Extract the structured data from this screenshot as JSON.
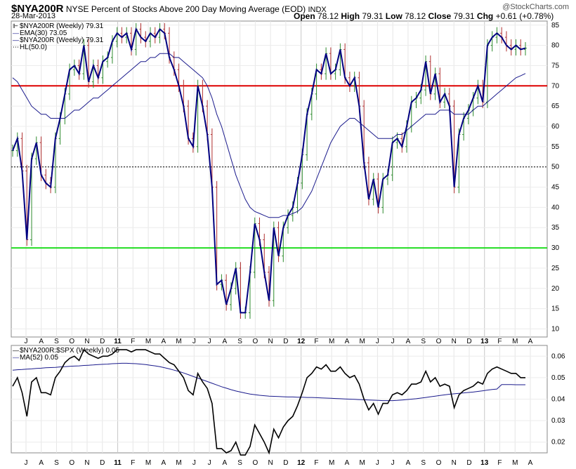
{
  "header": {
    "symbol": "$NYA200R",
    "description": "NYSE Percent of Stocks Above 200 Day Moving Average (EOD)",
    "exchange": "INDX",
    "date": "28-Mar-2013",
    "open_label": "Open",
    "open": "78.12",
    "high_label": "High",
    "high": "79.31",
    "low_label": "Low",
    "low": "78.12",
    "close_label": "Close",
    "close": "79.31",
    "chg_label": "Chg",
    "chg": "+0.61 (+0.78%)",
    "watermark": "@StockCharts.com"
  },
  "legend_main": [
    {
      "text": "$NYA200R (Weekly) 79.31",
      "color": "#000000",
      "symbol": "bars"
    },
    {
      "text": "EMA(30) 73.05",
      "color": "#1a1a8c",
      "symbol": "line"
    },
    {
      "text": "$NYA200R (Weekly) 79.31",
      "color": "#000080",
      "symbol": "line"
    },
    {
      "text": "HL(50.0)",
      "color": "#000000",
      "symbol": "dots"
    }
  ],
  "legend_lower": [
    {
      "text": "$NYA200R:$SPX (Weekly) 0.05",
      "color": "#000000",
      "symbol": "line"
    },
    {
      "text": "MA(52) 0.05",
      "color": "#1a1a8c",
      "symbol": "line"
    }
  ],
  "colors": {
    "price": "#000080",
    "ema": "#1a1a8c",
    "up_bar": "#2e8b2e",
    "down_bar": "#b03030",
    "hl70": "#dd0000",
    "hl30": "#22dd22",
    "ratio": "#000000",
    "ma": "#1a1a8c"
  },
  "chart_data": [
    {
      "type": "line",
      "ylim": [
        8,
        86
      ],
      "yticks": [
        "10",
        "15",
        "20",
        "25",
        "30",
        "35",
        "40",
        "45",
        "50",
        "55",
        "60",
        "65",
        "70",
        "75",
        "80",
        "85"
      ],
      "x_month_labels": [
        "J",
        "A",
        "S",
        "O",
        "N",
        "D",
        "11",
        "F",
        "M",
        "A",
        "M",
        "J",
        "J",
        "A",
        "S",
        "O",
        "N",
        "D",
        "12",
        "F",
        "M",
        "A",
        "M",
        "J",
        "J",
        "A",
        "S",
        "O",
        "N",
        "D",
        "13",
        "F",
        "M",
        "A"
      ],
      "horizontal_lines": [
        {
          "value": 70,
          "style": "solid"
        },
        {
          "value": 50,
          "style": "dotted"
        },
        {
          "value": 30,
          "style": "solid"
        }
      ],
      "series": [
        {
          "name": "$NYA200R (Weekly)",
          "values": [
            54,
            57,
            49,
            32,
            52,
            56,
            48,
            46,
            45,
            57,
            62,
            68,
            74,
            75,
            73,
            80,
            71,
            75,
            72,
            76,
            77,
            81,
            83,
            82,
            83,
            79,
            84,
            82,
            81,
            83,
            82,
            84,
            83,
            77,
            74,
            70,
            65,
            57,
            55,
            70,
            65,
            58,
            45,
            21,
            22,
            16,
            20,
            25,
            14,
            14,
            24,
            36,
            32,
            24,
            17,
            35,
            28,
            35,
            38,
            40,
            46,
            53,
            63,
            68,
            74,
            73,
            78,
            73,
            74,
            79,
            72,
            70,
            72,
            65,
            51,
            42,
            47,
            40,
            47,
            48,
            56,
            57,
            55,
            60,
            66,
            67,
            69,
            76,
            68,
            73,
            66,
            68,
            65,
            45,
            58,
            62,
            64,
            67,
            70,
            66,
            80,
            82,
            83,
            82,
            80,
            79,
            80,
            79,
            79.31
          ]
        },
        {
          "name": "EMA(30)",
          "values": [
            72,
            71,
            69,
            67,
            65,
            64,
            63,
            63,
            62,
            62,
            62,
            62,
            63,
            64,
            64,
            65,
            66,
            67,
            67,
            68,
            69,
            70,
            71,
            72,
            73,
            74,
            75,
            76,
            76,
            77,
            77,
            78,
            78,
            78,
            77,
            77,
            76,
            75,
            74,
            73,
            72,
            70,
            67,
            63,
            60,
            56,
            52,
            48,
            45,
            42,
            40,
            39,
            38.5,
            38,
            37.5,
            37.5,
            37.5,
            38,
            38,
            38.5,
            39,
            40,
            42,
            44,
            47,
            50,
            53,
            56,
            58,
            60,
            61,
            62,
            62,
            61,
            60,
            59,
            58,
            57,
            57,
            57,
            57,
            58,
            58,
            59,
            60,
            61,
            62,
            63,
            63,
            63,
            64,
            64,
            64,
            63,
            63,
            63,
            63,
            64,
            65,
            65,
            66,
            67,
            68,
            69,
            70,
            71,
            72,
            72.5,
            73.05
          ]
        }
      ]
    },
    {
      "type": "line",
      "ylim": [
        0.015,
        0.065
      ],
      "yticks": [
        "0.02",
        "0.03",
        "0.04",
        "0.05",
        "0.06"
      ],
      "series": [
        {
          "name": "$NYA200R:$SPX (Weekly)",
          "values": [
            0.046,
            0.05,
            0.043,
            0.032,
            0.048,
            0.05,
            0.043,
            0.043,
            0.042,
            0.05,
            0.053,
            0.057,
            0.059,
            0.06,
            0.058,
            0.063,
            0.061,
            0.06,
            0.059,
            0.06,
            0.06,
            0.061,
            0.063,
            0.063,
            0.063,
            0.062,
            0.063,
            0.063,
            0.063,
            0.062,
            0.061,
            0.061,
            0.059,
            0.057,
            0.056,
            0.053,
            0.05,
            0.044,
            0.042,
            0.052,
            0.048,
            0.045,
            0.038,
            0.017,
            0.017,
            0.015,
            0.016,
            0.02,
            0.014,
            0.014,
            0.018,
            0.028,
            0.024,
            0.02,
            0.015,
            0.026,
            0.022,
            0.027,
            0.03,
            0.032,
            0.037,
            0.043,
            0.05,
            0.052,
            0.055,
            0.054,
            0.056,
            0.053,
            0.053,
            0.055,
            0.052,
            0.05,
            0.051,
            0.047,
            0.04,
            0.035,
            0.038,
            0.033,
            0.038,
            0.038,
            0.042,
            0.043,
            0.042,
            0.044,
            0.047,
            0.047,
            0.048,
            0.053,
            0.048,
            0.05,
            0.046,
            0.047,
            0.046,
            0.036,
            0.042,
            0.044,
            0.045,
            0.046,
            0.048,
            0.047,
            0.052,
            0.054,
            0.055,
            0.054,
            0.053,
            0.052,
            0.052,
            0.05,
            0.05
          ]
        },
        {
          "name": "MA(52)",
          "values": [
            0.0535,
            0.0537,
            0.0538,
            0.054,
            0.0541,
            0.0543,
            0.0544,
            0.0546,
            0.0547,
            0.0548,
            0.055,
            0.0551,
            0.0553,
            0.0554,
            0.0555,
            0.0557,
            0.0558,
            0.0559,
            0.0561,
            0.0562,
            0.0563,
            0.0565,
            0.0566,
            0.0567,
            0.0567,
            0.0566,
            0.0565,
            0.0563,
            0.0561,
            0.0558,
            0.0555,
            0.0551,
            0.0546,
            0.0541,
            0.0535,
            0.0529,
            0.0522,
            0.0514,
            0.0506,
            0.0498,
            0.049,
            0.0482,
            0.0474,
            0.0466,
            0.0458,
            0.0451,
            0.0444,
            0.0438,
            0.0433,
            0.0428,
            0.0424,
            0.0421,
            0.0418,
            0.0416,
            0.0414,
            0.0413,
            0.0412,
            0.0411,
            0.041,
            0.041,
            0.0409,
            0.0409,
            0.0408,
            0.0408,
            0.0407,
            0.0406,
            0.0405,
            0.0404,
            0.0403,
            0.0402,
            0.0401,
            0.04,
            0.0399,
            0.0398,
            0.0397,
            0.0396,
            0.0395,
            0.0394,
            0.0393,
            0.0393,
            0.0393,
            0.0394,
            0.0396,
            0.0398,
            0.04,
            0.0402,
            0.0405,
            0.0408,
            0.0411,
            0.0414,
            0.0417,
            0.042,
            0.0423,
            0.0425,
            0.0427,
            0.0429,
            0.0431,
            0.0433,
            0.0436,
            0.0439,
            0.0442,
            0.0445,
            0.0447,
            0.0468,
            0.0468,
            0.0468,
            0.0467,
            0.0467,
            0.0467
          ]
        }
      ]
    }
  ]
}
